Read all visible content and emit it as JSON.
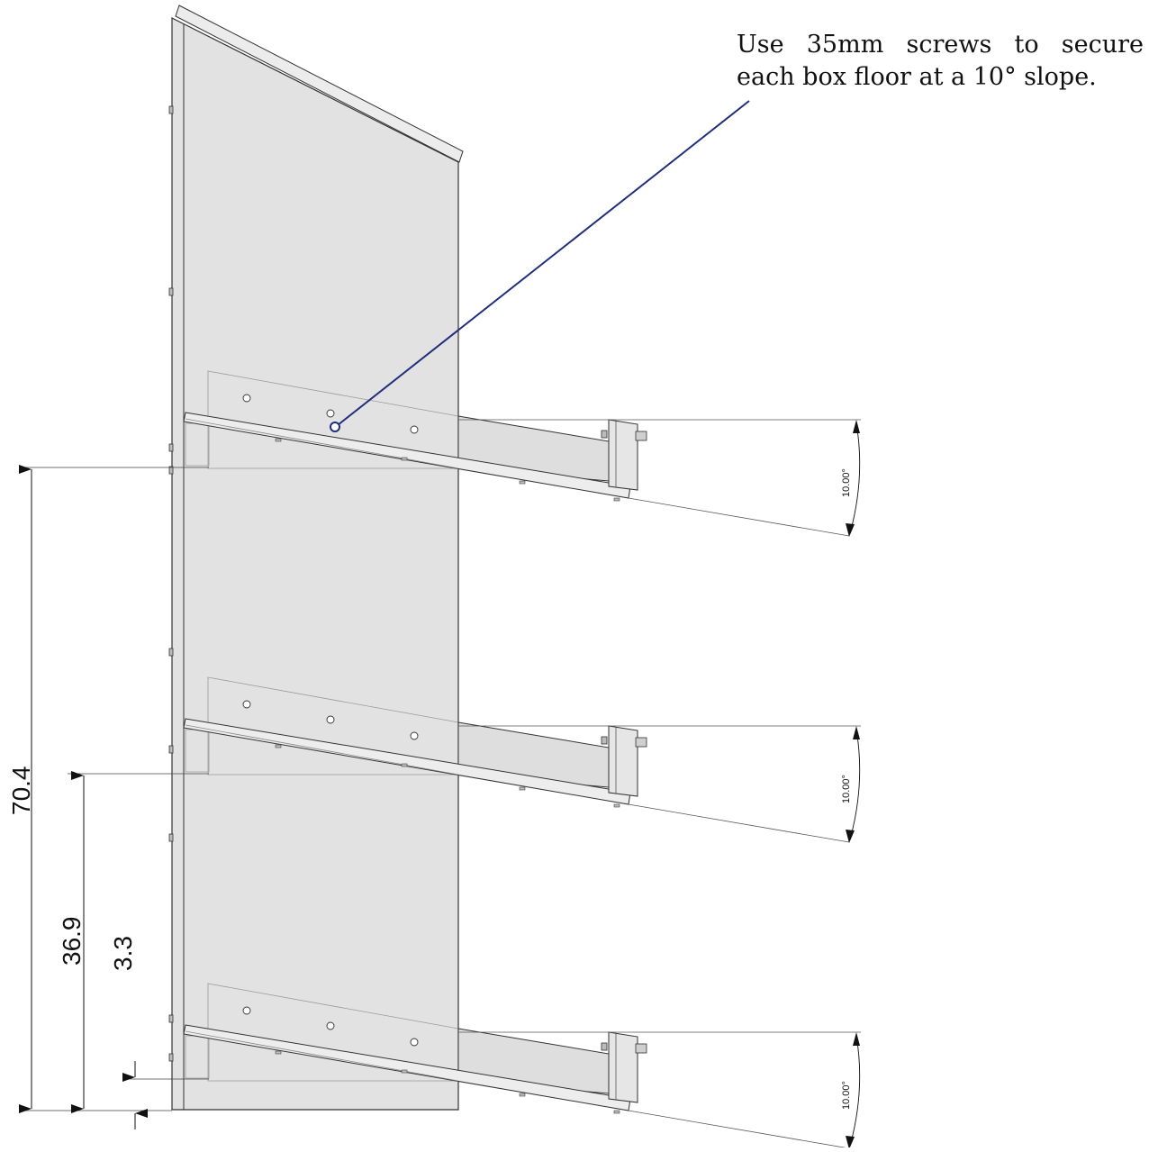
{
  "note": {
    "text": "Use 35mm screws to secure each box floor at a 10° slope."
  },
  "dimensions": {
    "overall_height": "70.4",
    "mid_height": "36.9",
    "bottom_offset": "3.3"
  },
  "angles": [
    "10.00°",
    "10.00°",
    "10.00°"
  ],
  "colors": {
    "panel_fill": "#e2e2e2",
    "line": "#333333",
    "leader": "#1f2d7a"
  }
}
